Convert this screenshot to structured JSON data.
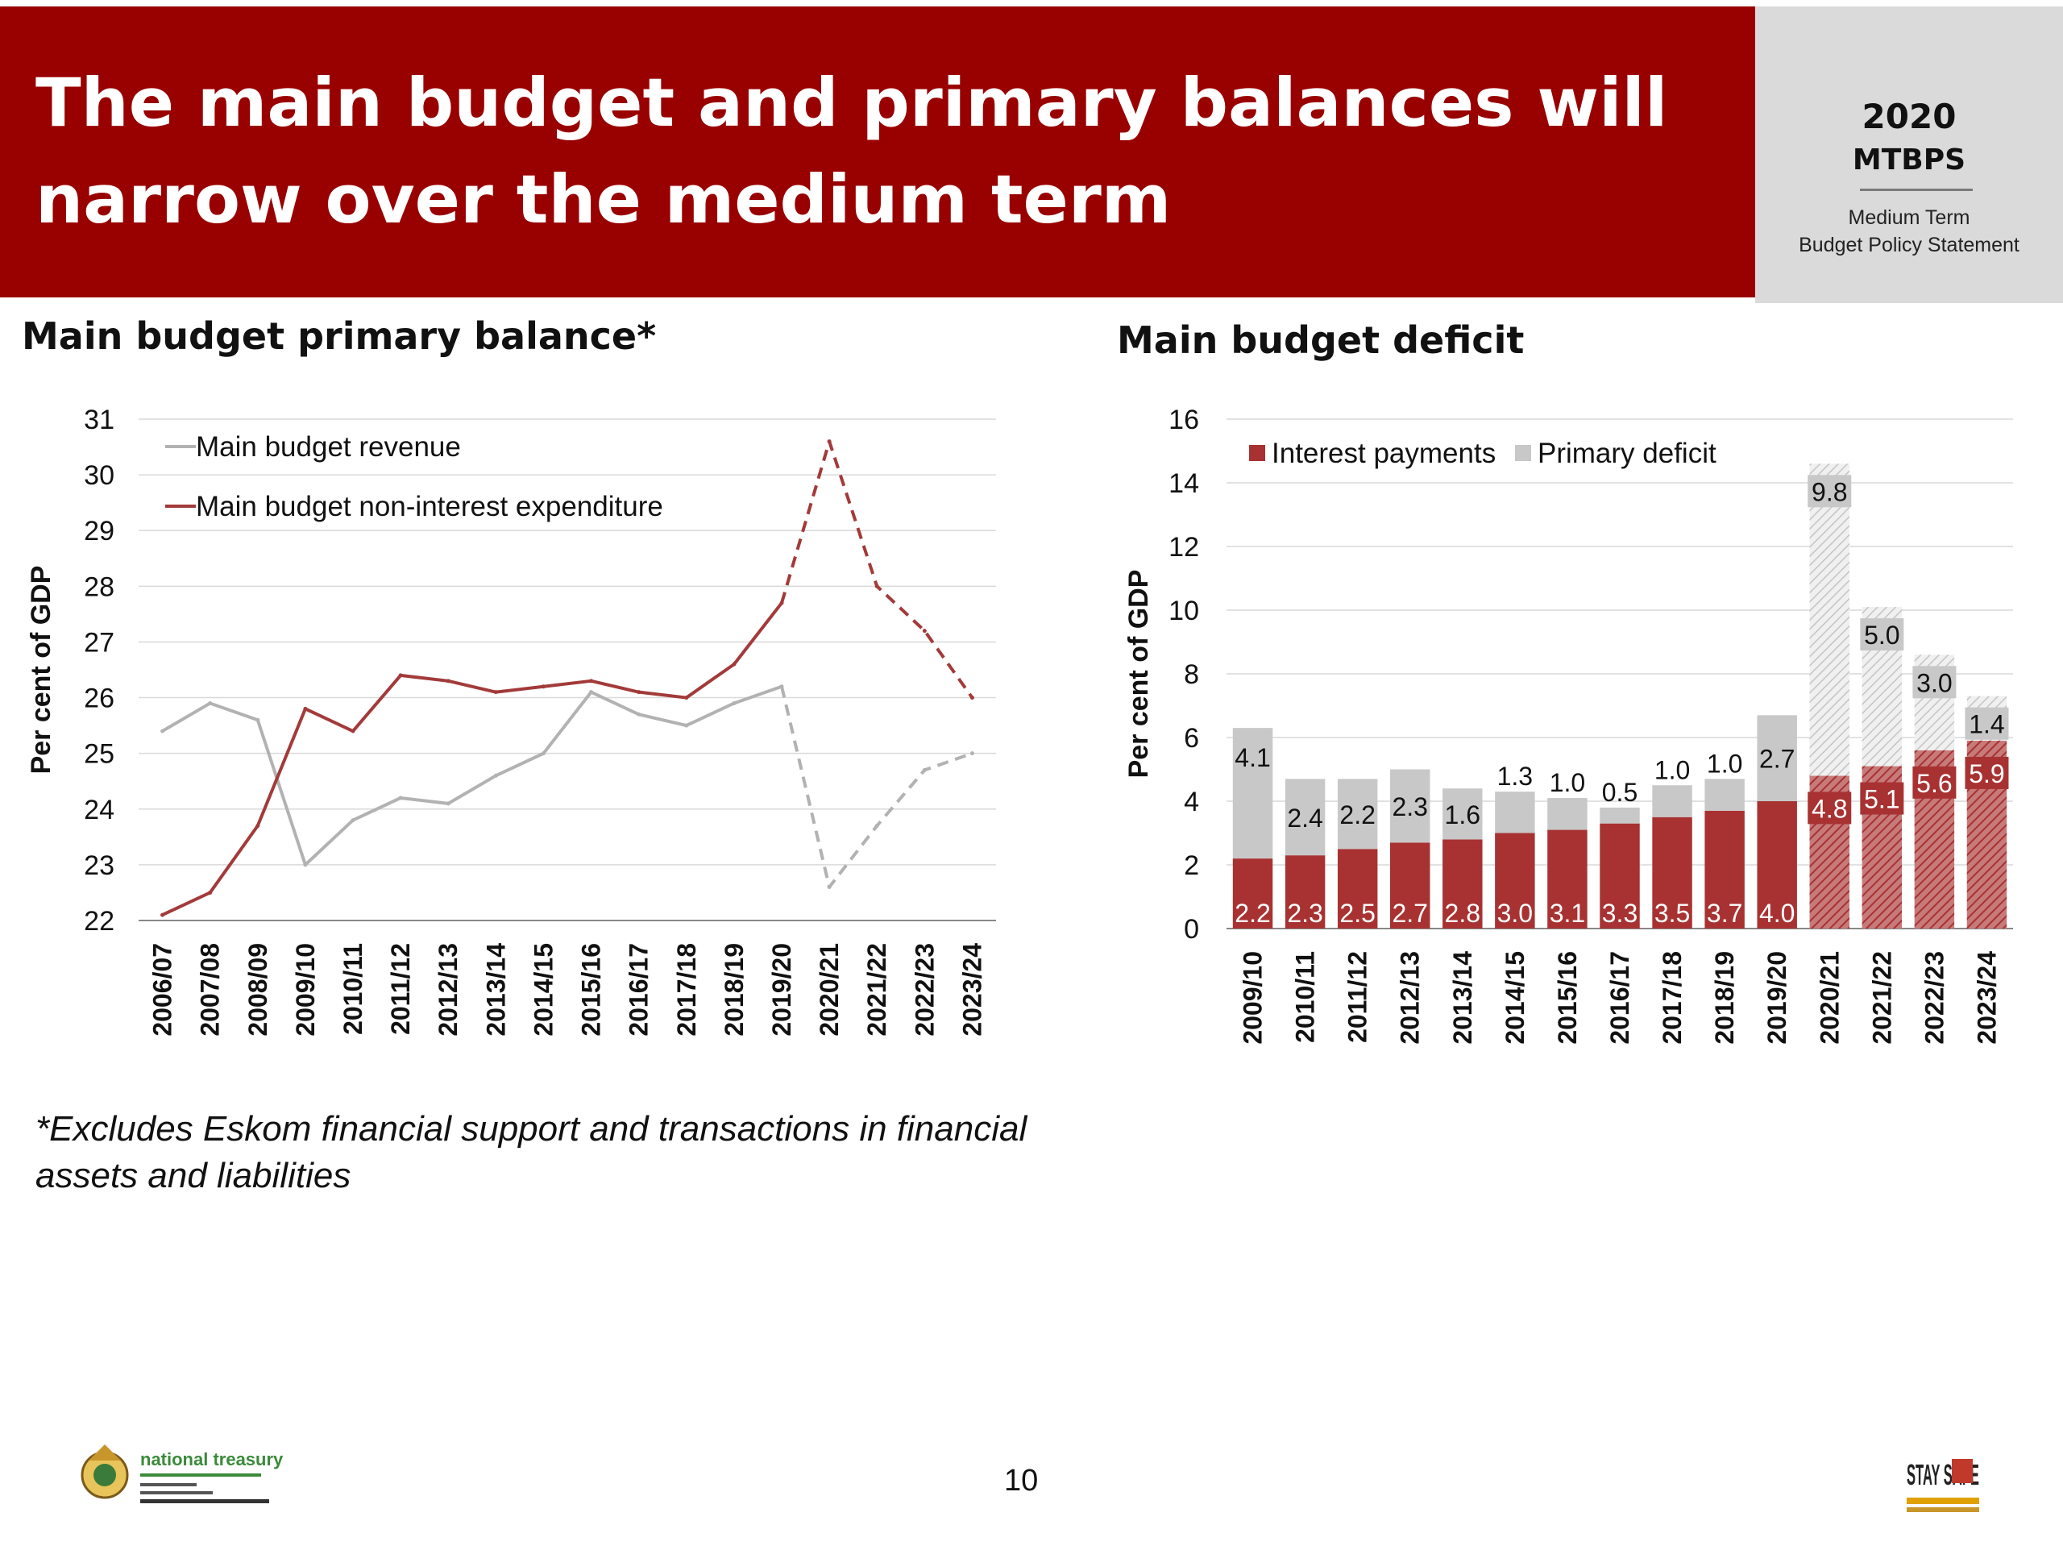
{
  "header": {
    "title": "The main budget and primary balances will narrow over the medium term",
    "mtbps_year": "2020",
    "mtbps_name": "MTBPS",
    "mtbps_sub_line1": "Medium Term",
    "mtbps_sub_line2": "Budget Policy Statement"
  },
  "footnote": "*Excludes Eskom financial support and transactions in financial assets and liabilities",
  "page_number": "10",
  "logos": {
    "treasury_text": "national treasury",
    "safe_text": "STAY SAFE"
  },
  "colors": {
    "brand_red": "#990000",
    "series_red": "#a33a3a",
    "series_grey": "#b2b2b2",
    "interest_bar": "#a83232",
    "primary_bar": "#c8c8c8"
  },
  "chart_data": [
    {
      "type": "line",
      "title": "Main budget primary balance*",
      "ylabel": "Per cent of GDP",
      "ylim": [
        22,
        31
      ],
      "yticks": [
        "22",
        "23",
        "24",
        "25",
        "26",
        "27",
        "28",
        "29",
        "30",
        "31"
      ],
      "categories": [
        "2006/07",
        "2007/08",
        "2008/09",
        "2009/10",
        "2010/11",
        "2011/12",
        "2012/13",
        "2013/14",
        "2014/15",
        "2015/16",
        "2016/17",
        "2017/18",
        "2018/19",
        "2019/20",
        "2020/21",
        "2021/22",
        "2022/23",
        "2023/24"
      ],
      "forecast_from": "2019/20",
      "grid": true,
      "legend": "top-left",
      "series": [
        {
          "name": "Main budget revenue",
          "color": "#b2b2b2",
          "values": [
            25.4,
            25.9,
            25.6,
            23.0,
            23.8,
            24.2,
            24.1,
            24.6,
            25.0,
            26.1,
            25.7,
            25.5,
            25.9,
            26.2,
            22.6,
            23.7,
            24.7,
            25.0
          ]
        },
        {
          "name": "Main budget non-interest expenditure",
          "color": "#a33a3a",
          "values": [
            22.1,
            22.5,
            23.7,
            25.8,
            25.4,
            26.4,
            26.3,
            26.1,
            26.2,
            26.3,
            26.1,
            26.0,
            26.6,
            27.7,
            30.6,
            28.0,
            27.2,
            26.0
          ]
        }
      ]
    },
    {
      "type": "bar",
      "stacked": true,
      "title": "Main budget deficit",
      "ylabel": "Per cent of GDP",
      "ylim": [
        0,
        16
      ],
      "yticks": [
        "0",
        "2",
        "4",
        "6",
        "8",
        "10",
        "12",
        "14",
        "16"
      ],
      "categories": [
        "2009/10",
        "2010/11",
        "2011/12",
        "2012/13",
        "2013/14",
        "2014/15",
        "2015/16",
        "2016/17",
        "2017/18",
        "2018/19",
        "2019/20",
        "2020/21",
        "2021/22",
        "2022/23",
        "2023/24"
      ],
      "forecast_from": "2020/21",
      "grid": true,
      "legend": "top-left",
      "series": [
        {
          "name": "Interest payments",
          "color": "#a83232",
          "values": [
            2.2,
            2.3,
            2.5,
            2.7,
            2.8,
            3.0,
            3.1,
            3.3,
            3.5,
            3.7,
            4.0,
            4.8,
            5.1,
            5.6,
            5.9
          ],
          "labels": [
            "2.2",
            "2.3",
            "2.5",
            "2.7",
            "2.8",
            "3.0",
            "3.1",
            "3.3",
            "3.5",
            "3.7",
            "4.0",
            "4.8",
            "5.1",
            "5.6",
            "5.9"
          ]
        },
        {
          "name": "Primary deficit",
          "color": "#c8c8c8",
          "values": [
            4.1,
            2.4,
            2.2,
            2.3,
            1.6,
            1.3,
            1.0,
            0.5,
            1.0,
            1.0,
            2.7,
            9.8,
            5.0,
            3.0,
            1.4
          ],
          "labels": [
            "4.1",
            "2.4",
            "2.2",
            "2.3",
            "1.6",
            "1.3",
            "1.0",
            "0.5",
            "1.0",
            "1.0",
            "2.7",
            "9.8",
            "5.0",
            "3.0",
            "1.4"
          ]
        }
      ]
    }
  ]
}
